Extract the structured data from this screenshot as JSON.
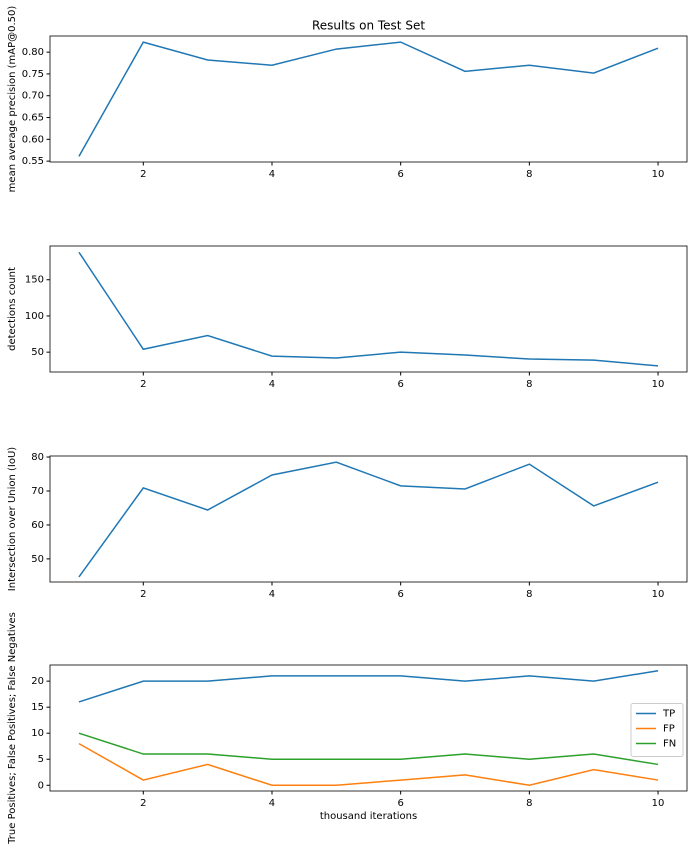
{
  "chart_data": [
    {
      "type": "line",
      "title": "Results on Test Set",
      "ylabel": "mean average precision (mAP@0.50)",
      "x": [
        1,
        2,
        3,
        4,
        5,
        6,
        7,
        8,
        9,
        10
      ],
      "values": [
        0.561,
        0.823,
        0.782,
        0.77,
        0.807,
        0.823,
        0.756,
        0.77,
        0.752,
        0.809
      ],
      "color": "#1f77b4",
      "xlim": [
        0.55,
        10.45
      ],
      "xticks": [
        2,
        4,
        6,
        8,
        10
      ],
      "ylim": [
        0.548,
        0.837
      ],
      "yticks": [
        {
          "value": 0.55,
          "label": "0.55"
        },
        {
          "value": 0.6,
          "label": "0.60"
        },
        {
          "value": 0.65,
          "label": "0.65"
        },
        {
          "value": 0.7,
          "label": "0.70"
        },
        {
          "value": 0.75,
          "label": "0.75"
        },
        {
          "value": 0.8,
          "label": "0.80"
        }
      ]
    },
    {
      "type": "line",
      "ylabel": "detections count",
      "x": [
        1,
        2,
        3,
        4,
        5,
        6,
        7,
        8,
        9,
        10
      ],
      "values": [
        188,
        54,
        73,
        44.5,
        42,
        50,
        46,
        40.5,
        39,
        31
      ],
      "color": "#1f77b4",
      "xlim": [
        0.55,
        10.45
      ],
      "xticks": [
        2,
        4,
        6,
        8,
        10
      ],
      "ylim": [
        22.6,
        196.6
      ],
      "yticks": [
        50,
        100,
        150
      ]
    },
    {
      "type": "line",
      "ylabel": "Intersection over Union (IoU)",
      "x": [
        1,
        2,
        3,
        4,
        5,
        6,
        7,
        8,
        9,
        10
      ],
      "values": [
        44.7,
        70.9,
        64.4,
        74.7,
        78.5,
        71.5,
        70.6,
        77.9,
        65.6,
        72.6
      ],
      "color": "#1f77b4",
      "xlim": [
        0.55,
        10.45
      ],
      "xticks": [
        2,
        4,
        6,
        8,
        10
      ],
      "ylim": [
        43.2,
        80.3
      ],
      "yticks": [
        50,
        60,
        70,
        80
      ]
    },
    {
      "type": "line",
      "ylabel": "True Positives; False Positives; False Negatives",
      "xlabel": "thousand iterations",
      "x": [
        1,
        2,
        3,
        4,
        5,
        6,
        7,
        8,
        9,
        10
      ],
      "series": [
        {
          "name": "TP",
          "color": "#1f77b4",
          "values": [
            16,
            20,
            20,
            21,
            21,
            21,
            20,
            21,
            20,
            22
          ]
        },
        {
          "name": "FP",
          "color": "#ff7f0e",
          "values": [
            8,
            1,
            4,
            0,
            0,
            1,
            2,
            0,
            3,
            1
          ]
        },
        {
          "name": "FN",
          "color": "#2ca02c",
          "values": [
            10,
            6,
            6,
            5,
            5,
            5,
            6,
            5,
            6,
            4
          ]
        }
      ],
      "xlim": [
        0.55,
        10.45
      ],
      "xticks": [
        2,
        4,
        6,
        8,
        10
      ],
      "ylim": [
        -1.1,
        23.1
      ],
      "yticks": [
        0,
        5,
        10,
        15,
        20
      ],
      "legend": "center right"
    }
  ]
}
